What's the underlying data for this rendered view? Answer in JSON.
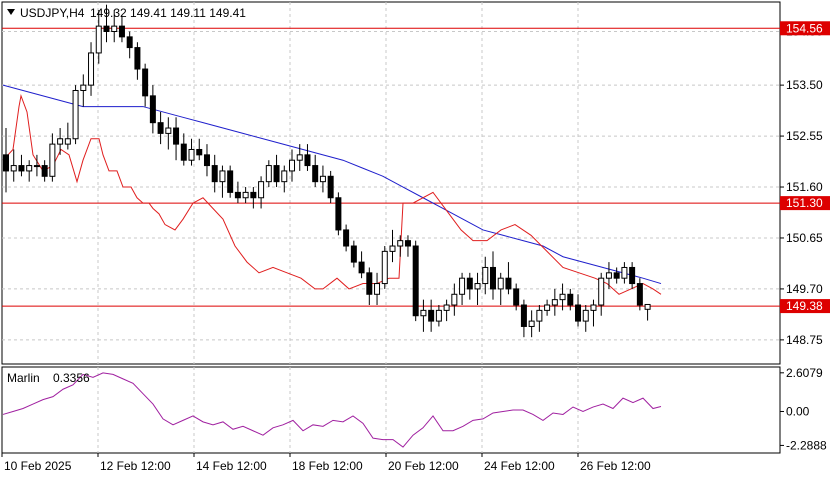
{
  "header": {
    "symbol": "USDJPY,H4",
    "ohlc": "149.32 149.41 149.11 149.41"
  },
  "indicator": {
    "name": "Marlin",
    "value": "0.3356"
  },
  "colors": {
    "background": "#ffffff",
    "frame": "#000000",
    "grid": "#c8c8c8",
    "candle": "#000000",
    "ma_fast": "#e01e1e",
    "ma_slow": "#1f1fcc",
    "oscillator": "#a020a0",
    "level": "#dd0000"
  },
  "chart_data": [
    {
      "type": "candlestick",
      "title": "USDJPY,H4",
      "ylim": [
        148.3,
        155.05
      ],
      "y_ticks": [
        "154.50",
        "153.50",
        "152.55",
        "151.60",
        "150.65",
        "149.70",
        "148.75"
      ],
      "x_ticks": [
        "10 Feb 2025",
        "12 Feb 12:00",
        "14 Feb 12:00",
        "18 Feb 12:00",
        "20 Feb 12:00",
        "24 Feb 12:00",
        "26 Feb 12:00"
      ],
      "levels": [
        {
          "value": 154.56,
          "label": "154.56"
        },
        {
          "value": 151.3,
          "label": "151.30"
        },
        {
          "value": 149.38,
          "label": "149.38"
        }
      ],
      "candles": [
        [
          152.2,
          152.7,
          151.5,
          151.9
        ],
        [
          151.9,
          152.3,
          151.7,
          152.0
        ],
        [
          152.0,
          152.2,
          151.8,
          151.9
        ],
        [
          151.9,
          152.1,
          151.7,
          152.0
        ],
        [
          152.0,
          152.2,
          151.8,
          152.0
        ],
        [
          152.0,
          152.1,
          151.7,
          151.8
        ],
        [
          151.8,
          152.6,
          151.7,
          152.4
        ],
        [
          152.4,
          152.7,
          152.2,
          152.5
        ],
        [
          152.4,
          152.8,
          152.3,
          152.5
        ],
        [
          152.5,
          153.5,
          152.4,
          153.4
        ],
        [
          153.4,
          153.7,
          153.1,
          153.5
        ],
        [
          153.5,
          154.3,
          153.3,
          154.1
        ],
        [
          154.1,
          154.9,
          153.9,
          154.6
        ],
        [
          154.6,
          155.0,
          154.3,
          154.5
        ],
        [
          154.5,
          154.9,
          154.3,
          154.6
        ],
        [
          154.6,
          154.8,
          154.3,
          154.4
        ],
        [
          154.4,
          154.5,
          154.0,
          154.2
        ],
        [
          154.2,
          154.3,
          153.6,
          153.8
        ],
        [
          153.8,
          153.9,
          153.1,
          153.3
        ],
        [
          153.3,
          153.5,
          152.6,
          152.8
        ],
        [
          152.8,
          153.0,
          152.4,
          152.6
        ],
        [
          152.6,
          152.9,
          152.3,
          152.7
        ],
        [
          152.7,
          152.9,
          152.1,
          152.4
        ],
        [
          152.4,
          152.6,
          152.0,
          152.1
        ],
        [
          152.1,
          152.5,
          152.0,
          152.3
        ],
        [
          152.3,
          152.5,
          152.1,
          152.2
        ],
        [
          152.2,
          152.4,
          151.8,
          152.0
        ],
        [
          152.0,
          152.2,
          151.5,
          151.7
        ],
        [
          151.7,
          152.0,
          151.4,
          151.9
        ],
        [
          151.9,
          152.0,
          151.4,
          151.5
        ],
        [
          151.5,
          151.7,
          151.3,
          151.4
        ],
        [
          151.4,
          151.6,
          151.3,
          151.5
        ],
        [
          151.5,
          151.6,
          151.2,
          151.4
        ],
        [
          151.4,
          151.8,
          151.2,
          151.7
        ],
        [
          151.7,
          152.1,
          151.6,
          152.0
        ],
        [
          152.0,
          152.2,
          151.6,
          151.7
        ],
        [
          151.7,
          152.0,
          151.5,
          151.9
        ],
        [
          151.9,
          152.3,
          151.7,
          152.1
        ],
        [
          152.1,
          152.4,
          151.9,
          152.2
        ],
        [
          152.2,
          152.4,
          151.9,
          152.0
        ],
        [
          152.0,
          152.2,
          151.6,
          151.7
        ],
        [
          151.7,
          152.0,
          151.5,
          151.8
        ],
        [
          151.8,
          151.9,
          151.3,
          151.4
        ],
        [
          151.4,
          151.5,
          150.7,
          150.8
        ],
        [
          150.8,
          150.9,
          150.4,
          150.5
        ],
        [
          150.5,
          150.6,
          150.1,
          150.2
        ],
        [
          150.2,
          150.4,
          149.9,
          150.0
        ],
        [
          150.0,
          150.1,
          149.4,
          149.6
        ],
        [
          149.6,
          150.0,
          149.4,
          149.8
        ],
        [
          149.8,
          150.5,
          149.7,
          150.4
        ],
        [
          150.4,
          150.8,
          150.2,
          150.5
        ],
        [
          150.5,
          150.7,
          150.3,
          150.6
        ],
        [
          150.6,
          150.7,
          150.3,
          150.5
        ],
        [
          150.5,
          150.6,
          149.1,
          149.2
        ],
        [
          149.2,
          149.5,
          148.9,
          149.3
        ],
        [
          149.3,
          149.5,
          148.9,
          149.1
        ],
        [
          149.1,
          149.4,
          149.0,
          149.3
        ],
        [
          149.3,
          149.5,
          149.1,
          149.4
        ],
        [
          149.4,
          149.8,
          149.2,
          149.6
        ],
        [
          149.6,
          150.0,
          149.4,
          149.9
        ],
        [
          149.9,
          150.0,
          149.5,
          149.7
        ],
        [
          149.7,
          150.0,
          149.4,
          149.8
        ],
        [
          149.8,
          150.3,
          149.6,
          150.1
        ],
        [
          150.1,
          150.4,
          149.5,
          149.7
        ],
        [
          149.7,
          150.0,
          149.4,
          149.9
        ],
        [
          149.9,
          150.2,
          149.6,
          149.7
        ],
        [
          149.7,
          149.8,
          149.3,
          149.4
        ],
        [
          149.4,
          149.5,
          148.8,
          149.0
        ],
        [
          149.0,
          149.3,
          148.8,
          149.1
        ],
        [
          149.1,
          149.4,
          148.9,
          149.3
        ],
        [
          149.3,
          149.5,
          149.2,
          149.4
        ],
        [
          149.4,
          149.7,
          149.2,
          149.5
        ],
        [
          149.5,
          149.8,
          149.3,
          149.6
        ],
        [
          149.6,
          149.7,
          149.3,
          149.4
        ],
        [
          149.4,
          149.6,
          149.0,
          149.1
        ],
        [
          149.1,
          149.4,
          148.9,
          149.3
        ],
        [
          149.3,
          149.5,
          149.0,
          149.4
        ],
        [
          149.4,
          150.0,
          149.2,
          149.9
        ],
        [
          149.9,
          150.2,
          149.7,
          150.0
        ],
        [
          150.0,
          150.1,
          149.8,
          149.9
        ],
        [
          149.9,
          150.2,
          149.8,
          150.1
        ],
        [
          150.1,
          150.2,
          149.7,
          149.8
        ],
        [
          149.8,
          149.9,
          149.3,
          149.4
        ],
        [
          149.32,
          149.41,
          149.11,
          149.41
        ]
      ],
      "ma_fast": [
        [
          0,
          152.1
        ],
        [
          10,
          152.3
        ],
        [
          16,
          153.1
        ],
        [
          18,
          153.3
        ],
        [
          24,
          153.0
        ],
        [
          30,
          152.2
        ],
        [
          40,
          151.9
        ],
        [
          50,
          152.0
        ],
        [
          58,
          152.3
        ],
        [
          66,
          152.2
        ],
        [
          74,
          151.7
        ],
        [
          80,
          152.1
        ],
        [
          88,
          152.5
        ],
        [
          96,
          152.5
        ],
        [
          100,
          152.2
        ],
        [
          106,
          151.9
        ],
        [
          114,
          151.9
        ],
        [
          120,
          151.6
        ],
        [
          128,
          151.6
        ],
        [
          134,
          151.4
        ],
        [
          140,
          151.3
        ],
        [
          146,
          151.3
        ],
        [
          150,
          151.2
        ],
        [
          156,
          151.1
        ],
        [
          162,
          150.9
        ],
        [
          172,
          150.8
        ],
        [
          180,
          151.0
        ],
        [
          190,
          151.3
        ],
        [
          200,
          151.4
        ],
        [
          210,
          151.2
        ],
        [
          220,
          151.0
        ],
        [
          232,
          150.5
        ],
        [
          244,
          150.2
        ],
        [
          256,
          150.0
        ],
        [
          270,
          150.1
        ],
        [
          284,
          150.0
        ],
        [
          298,
          149.9
        ],
        [
          312,
          149.7
        ],
        [
          320,
          149.7
        ],
        [
          334,
          149.9
        ],
        [
          346,
          149.7
        ],
        [
          360,
          149.8
        ],
        [
          374,
          149.8
        ],
        [
          386,
          149.9
        ],
        [
          396,
          149.9
        ],
        [
          400,
          151.3
        ],
        [
          410,
          151.3
        ],
        [
          430,
          151.5
        ],
        [
          446,
          151.1
        ],
        [
          458,
          150.8
        ],
        [
          470,
          150.6
        ],
        [
          484,
          150.6
        ],
        [
          498,
          150.8
        ],
        [
          512,
          150.9
        ],
        [
          528,
          150.7
        ],
        [
          544,
          150.4
        ],
        [
          560,
          150.1
        ],
        [
          576,
          150.0
        ],
        [
          592,
          149.9
        ],
        [
          604,
          149.8
        ],
        [
          616,
          149.6
        ],
        [
          628,
          149.7
        ],
        [
          640,
          149.8
        ],
        [
          650,
          149.7
        ],
        [
          658,
          149.6
        ]
      ],
      "ma_slow": [
        [
          0,
          153.5
        ],
        [
          20,
          153.4
        ],
        [
          40,
          153.3
        ],
        [
          60,
          153.2
        ],
        [
          80,
          153.1
        ],
        [
          100,
          153.1
        ],
        [
          120,
          153.1
        ],
        [
          140,
          153.1
        ],
        [
          160,
          153.0
        ],
        [
          180,
          152.9
        ],
        [
          200,
          152.8
        ],
        [
          220,
          152.7
        ],
        [
          240,
          152.6
        ],
        [
          260,
          152.5
        ],
        [
          280,
          152.4
        ],
        [
          300,
          152.3
        ],
        [
          320,
          152.2
        ],
        [
          340,
          152.1
        ],
        [
          360,
          151.95
        ],
        [
          380,
          151.8
        ],
        [
          400,
          151.6
        ],
        [
          420,
          151.4
        ],
        [
          440,
          151.2
        ],
        [
          460,
          151.0
        ],
        [
          480,
          150.8
        ],
        [
          500,
          150.7
        ],
        [
          520,
          150.6
        ],
        [
          540,
          150.5
        ],
        [
          560,
          150.3
        ],
        [
          580,
          150.2
        ],
        [
          600,
          150.1
        ],
        [
          620,
          150.0
        ],
        [
          640,
          149.9
        ],
        [
          658,
          149.8
        ]
      ],
      "candle_x0": 6,
      "candle_dx": 7.73
    },
    {
      "type": "line",
      "title": "Marlin 0.3356",
      "ylim": [
        -2.8,
        3.0
      ],
      "y_ticks": [
        "2.6079",
        "0.00",
        "-2.2888"
      ],
      "x": [
        0,
        10,
        20,
        30,
        40,
        50,
        60,
        70,
        80,
        90,
        100,
        110,
        120,
        130,
        140,
        150,
        160,
        170,
        180,
        190,
        200,
        210,
        220,
        230,
        240,
        250,
        260,
        270,
        280,
        290,
        300,
        310,
        320,
        330,
        340,
        350,
        360,
        370,
        380,
        390,
        400,
        410,
        420,
        430,
        440,
        450,
        460,
        470,
        480,
        490,
        500,
        510,
        520,
        530,
        540,
        550,
        560,
        570,
        580,
        590,
        600,
        610,
        620,
        630,
        640,
        650,
        658
      ],
      "values": [
        -0.2,
        0.0,
        0.2,
        0.5,
        0.8,
        1.0,
        1.5,
        1.8,
        2.5,
        2.3,
        2.6,
        2.5,
        2.2,
        1.9,
        1.2,
        0.5,
        -0.5,
        -0.9,
        -0.6,
        -0.3,
        -0.7,
        -0.9,
        -0.7,
        -1.2,
        -1.0,
        -1.3,
        -1.6,
        -1.1,
        -0.9,
        -0.6,
        -1.3,
        -0.9,
        -1.0,
        -0.6,
        -0.7,
        -0.3,
        -0.8,
        -1.8,
        -1.9,
        -1.9,
        -2.4,
        -1.6,
        -1.1,
        -0.3,
        -1.3,
        -1.3,
        -1.0,
        -0.6,
        -0.5,
        -0.1,
        0.0,
        0.1,
        0.1,
        -0.2,
        -0.6,
        -0.1,
        -0.2,
        0.3,
        0.0,
        0.3,
        0.5,
        0.2,
        0.9,
        0.6,
        0.9,
        0.2,
        0.3356
      ]
    }
  ]
}
